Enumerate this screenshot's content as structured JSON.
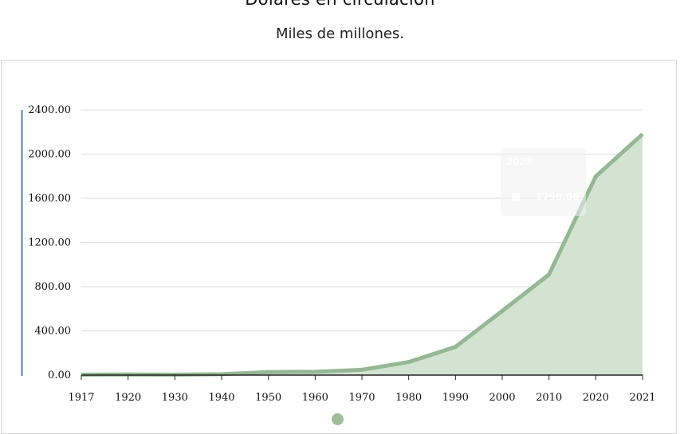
{
  "header": {
    "title": "Dólares en circulación",
    "subtitle": "Miles de millones."
  },
  "tooltip": {
    "year": "2020",
    "value": "1798.00"
  },
  "colors": {
    "line": "#94b893",
    "area": "#d3e3d2",
    "axis_bar": "#8faadc",
    "legend": "#9dbd9b"
  },
  "chart_data": {
    "type": "area",
    "categories": [
      "1917",
      "1920",
      "1930",
      "1940",
      "1950",
      "1960",
      "1970",
      "1980",
      "1990",
      "2000",
      "2010",
      "2020",
      "2021"
    ],
    "series": [
      {
        "values": [
          4,
          5,
          4,
          8,
          27,
          30,
          48,
          118,
          255,
          580,
          910,
          1798,
          2180
        ]
      }
    ],
    "yticks": [
      "0.00",
      "400.00",
      "800.00",
      "1200.00",
      "1600.00",
      "2000.00",
      "2400.00"
    ],
    "ylim": [
      0,
      2400
    ],
    "grid": true,
    "legend": "bottom-center"
  }
}
